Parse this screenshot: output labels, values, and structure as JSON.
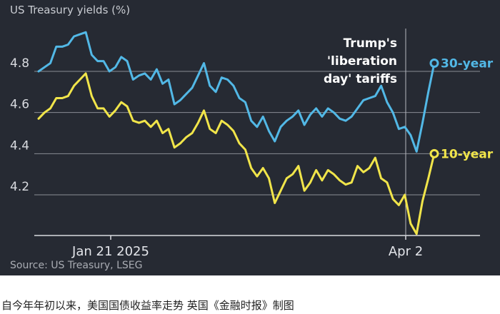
{
  "chart_data": {
    "type": "line",
    "title": "US Treasury yields (%)",
    "source": "Source: US Treasury, LSEG",
    "ylim": [
      4.0,
      5.0
    ],
    "yticks": [
      4.2,
      4.4,
      4.6,
      4.8
    ],
    "ytick_labels": [
      "4.2",
      "4.4",
      "4.6",
      "4.8"
    ],
    "xtick_labels": [
      "Jan 21 2025",
      "Apr 2"
    ],
    "annotation": [
      "Trump's",
      "'liberation",
      "day' tariffs"
    ],
    "series": [
      {
        "name": "30-year",
        "color": "#52b8e6",
        "values": [
          4.8,
          4.82,
          4.84,
          4.92,
          4.92,
          4.93,
          4.97,
          4.98,
          4.99,
          4.88,
          4.85,
          4.85,
          4.8,
          4.82,
          4.87,
          4.85,
          4.76,
          4.78,
          4.79,
          4.76,
          4.81,
          4.74,
          4.76,
          4.64,
          4.66,
          4.69,
          4.72,
          4.78,
          4.84,
          4.73,
          4.7,
          4.77,
          4.76,
          4.73,
          4.67,
          4.65,
          4.56,
          4.53,
          4.58,
          4.51,
          4.46,
          4.53,
          4.56,
          4.58,
          4.61,
          4.54,
          4.59,
          4.62,
          4.58,
          4.62,
          4.6,
          4.57,
          4.56,
          4.58,
          4.62,
          4.66,
          4.67,
          4.68,
          4.73,
          4.65,
          4.6,
          4.52,
          4.53,
          4.49,
          4.41,
          4.55,
          4.7,
          4.84
        ]
      },
      {
        "name": "10-year",
        "color": "#f1e54a",
        "values": [
          4.57,
          4.6,
          4.62,
          4.67,
          4.67,
          4.68,
          4.73,
          4.76,
          4.79,
          4.68,
          4.62,
          4.62,
          4.58,
          4.61,
          4.65,
          4.63,
          4.56,
          4.55,
          4.56,
          4.53,
          4.56,
          4.5,
          4.52,
          4.43,
          4.45,
          4.48,
          4.5,
          4.55,
          4.61,
          4.52,
          4.5,
          4.56,
          4.54,
          4.51,
          4.45,
          4.42,
          4.33,
          4.29,
          4.33,
          4.28,
          4.16,
          4.22,
          4.28,
          4.3,
          4.34,
          4.22,
          4.26,
          4.32,
          4.27,
          4.32,
          4.3,
          4.27,
          4.25,
          4.26,
          4.34,
          4.31,
          4.33,
          4.38,
          4.28,
          4.26,
          4.18,
          4.15,
          4.2,
          4.06,
          4.01,
          4.17,
          4.28,
          4.4
        ]
      }
    ]
  },
  "caption": "自今年年初以来，美国国债收益率走势 英国《金融时报》制图"
}
